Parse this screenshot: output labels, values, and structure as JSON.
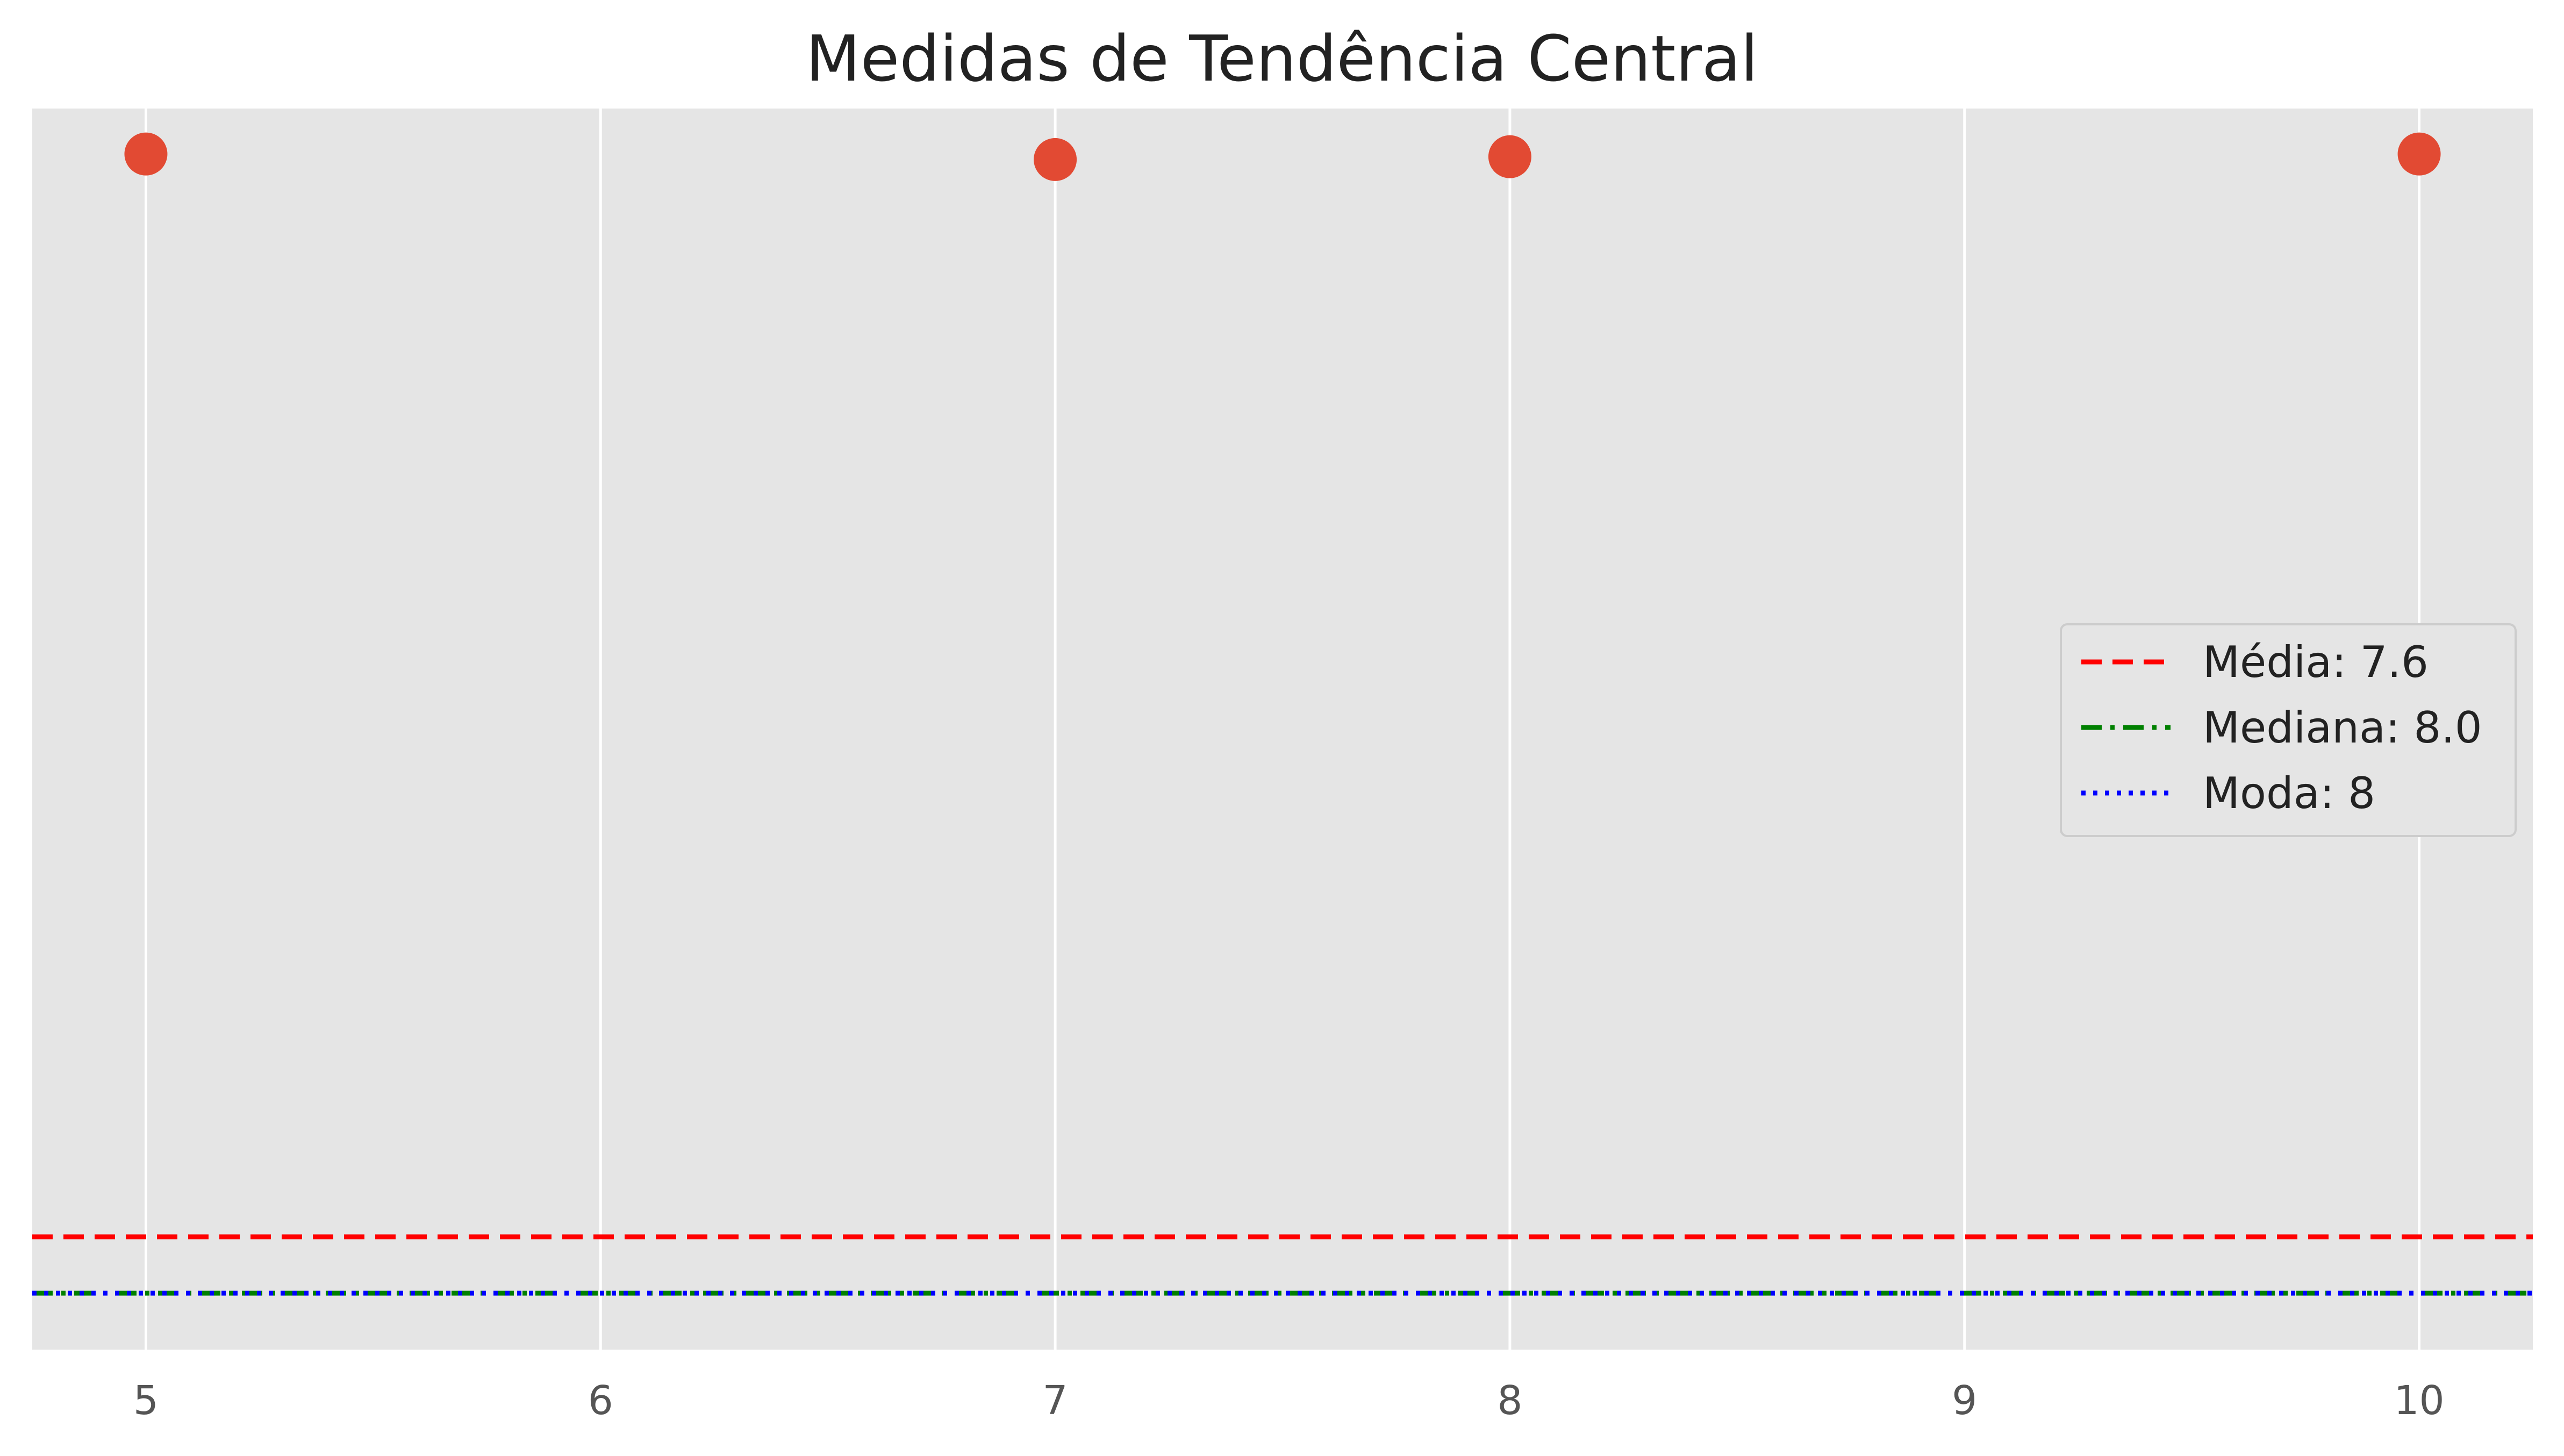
{
  "chart_data": {
    "type": "scatter",
    "title": "Medidas de Tendência Central",
    "xlabel": "",
    "ylabel": "",
    "x": [
      5,
      7,
      8,
      10
    ],
    "y": [
      0.0097,
      0.0048,
      0.0073,
      0.0097
    ],
    "xlim": [
      4.75,
      10.25
    ],
    "ylim": [
      -1.05,
      0.05
    ],
    "x_ticks": [
      "5",
      "6",
      "7",
      "8",
      "9",
      "10"
    ],
    "y_ticks_visible": false,
    "grid": true,
    "point_color": "#E24A33",
    "background_color": "#E5E5E5",
    "reference_lines": [
      {
        "label": "Média: 7.6",
        "y": -0.95,
        "color": "#FF0000",
        "style": "dashed"
      },
      {
        "label": "Mediana: 8.0",
        "y": -1.0,
        "color": "#008000",
        "style": "dashdot"
      },
      {
        "label": "Moda: 8",
        "y": -1.0,
        "color": "#0000FF",
        "style": "dotted"
      }
    ],
    "legend_position": "center-right"
  }
}
